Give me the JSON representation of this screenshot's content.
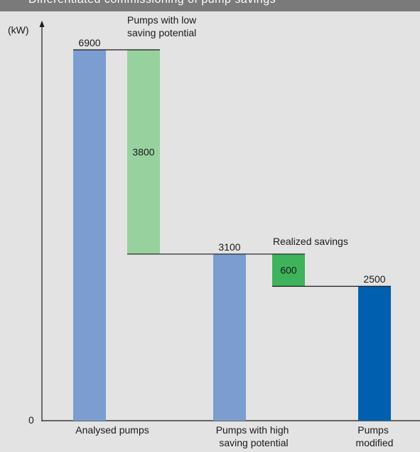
{
  "header": {
    "title": "Differentiated commissioning of pump savings"
  },
  "chart_data": {
    "type": "waterfall",
    "title": "",
    "ylabel": "(kW)",
    "y_origin_label": "0",
    "ylim": [
      0,
      6900
    ],
    "bars": [
      {
        "category": "Analysed pumps",
        "base": 0,
        "top": 6900,
        "label": "6900",
        "color": "#7b9dd0"
      },
      {
        "category": "",
        "base": 3100,
        "top": 6900,
        "label": "3800",
        "color": "#97d29e"
      },
      {
        "category": "Pumps with high saving potential",
        "base": 0,
        "top": 3100,
        "label": "3100",
        "color": "#7b9dd0"
      },
      {
        "category": "",
        "base": 2500,
        "top": 3100,
        "label": "600",
        "color": "#3fb35c"
      },
      {
        "category": "Pumps modified",
        "base": 0,
        "top": 2500,
        "label": "2500",
        "color": "#005fae"
      }
    ],
    "annotations": {
      "low_saving": [
        "Pumps with low",
        "saving potential"
      ],
      "realized": "Realized savings"
    },
    "category_labels": {
      "analysed": [
        "Analysed pumps"
      ],
      "high_saving": [
        "Pumps with high",
        "saving potential"
      ],
      "modified": [
        "Pumps",
        "modified"
      ]
    }
  }
}
